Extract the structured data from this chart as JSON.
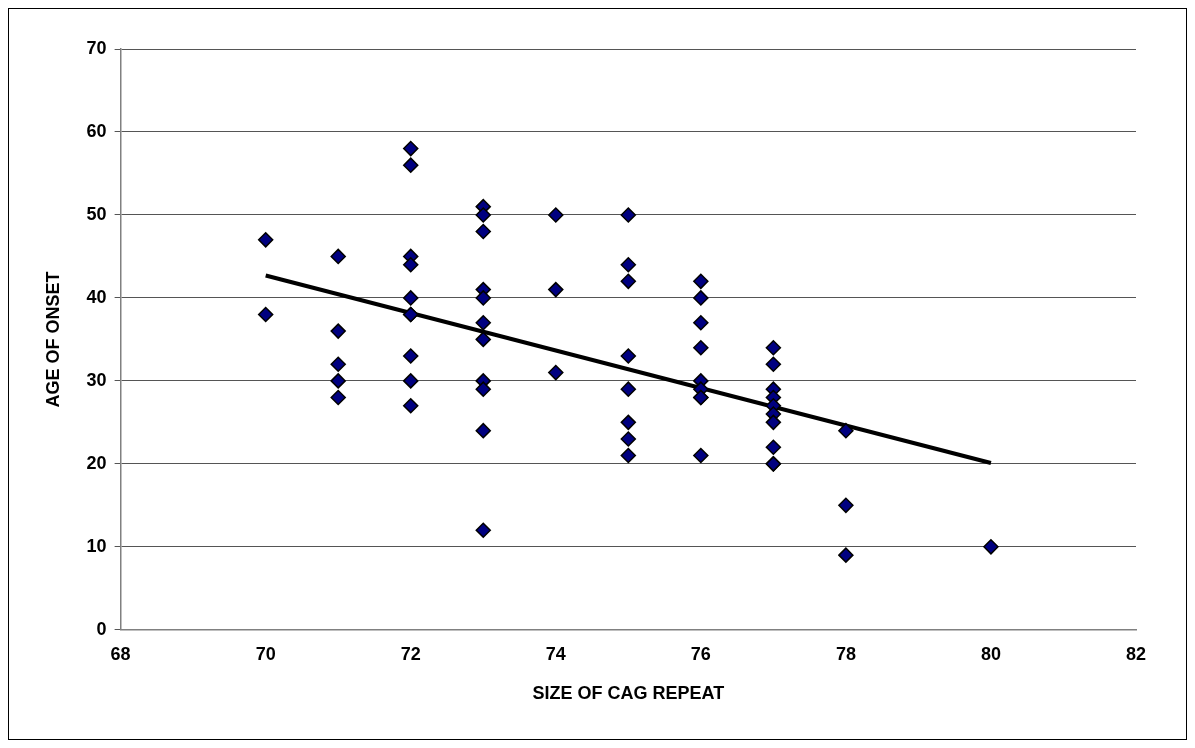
{
  "chart_data": {
    "type": "scatter",
    "xlabel": "SIZE OF CAG REPEAT",
    "ylabel": "AGE OF ONSET",
    "xlim": [
      68,
      82
    ],
    "xticks": [
      68,
      70,
      72,
      74,
      76,
      78,
      80,
      82
    ],
    "ylim": [
      0,
      70
    ],
    "yticks": [
      0,
      10,
      20,
      30,
      40,
      50,
      60,
      70
    ],
    "grid": "y",
    "legend": false,
    "series": [
      {
        "color": "#000080",
        "marker": "diamond",
        "x": [
          70,
          70,
          71,
          71,
          71,
          71,
          71,
          72,
          72,
          72,
          72,
          72,
          72,
          72,
          72,
          72,
          72,
          73,
          73,
          73,
          73,
          73,
          73,
          73,
          73,
          73,
          73,
          73,
          74,
          74,
          74,
          75,
          75,
          75,
          75,
          75,
          75,
          75,
          75,
          76,
          76,
          76,
          76,
          76,
          76,
          76,
          76,
          76,
          77,
          77,
          77,
          77,
          77,
          77,
          77,
          77,
          77,
          77,
          78,
          78,
          78,
          80
        ],
        "values": [
          47,
          38,
          45,
          36,
          32,
          30,
          28,
          58,
          56,
          45,
          44,
          40,
          38,
          38,
          33,
          30,
          27,
          51,
          50,
          48,
          41,
          40,
          37,
          35,
          30,
          29,
          24,
          12,
          50,
          41,
          31,
          50,
          44,
          42,
          33,
          29,
          25,
          23,
          21,
          42,
          40,
          37,
          34,
          30,
          29,
          28,
          28,
          21,
          34,
          32,
          29,
          28,
          27,
          26,
          25,
          22,
          20,
          20,
          24,
          15,
          9,
          10
        ]
      },
      {
        "type": "line",
        "marker": "none",
        "color": "#000000",
        "x": [
          70,
          80
        ],
        "values": [
          42.7,
          20.1
        ]
      }
    ]
  }
}
